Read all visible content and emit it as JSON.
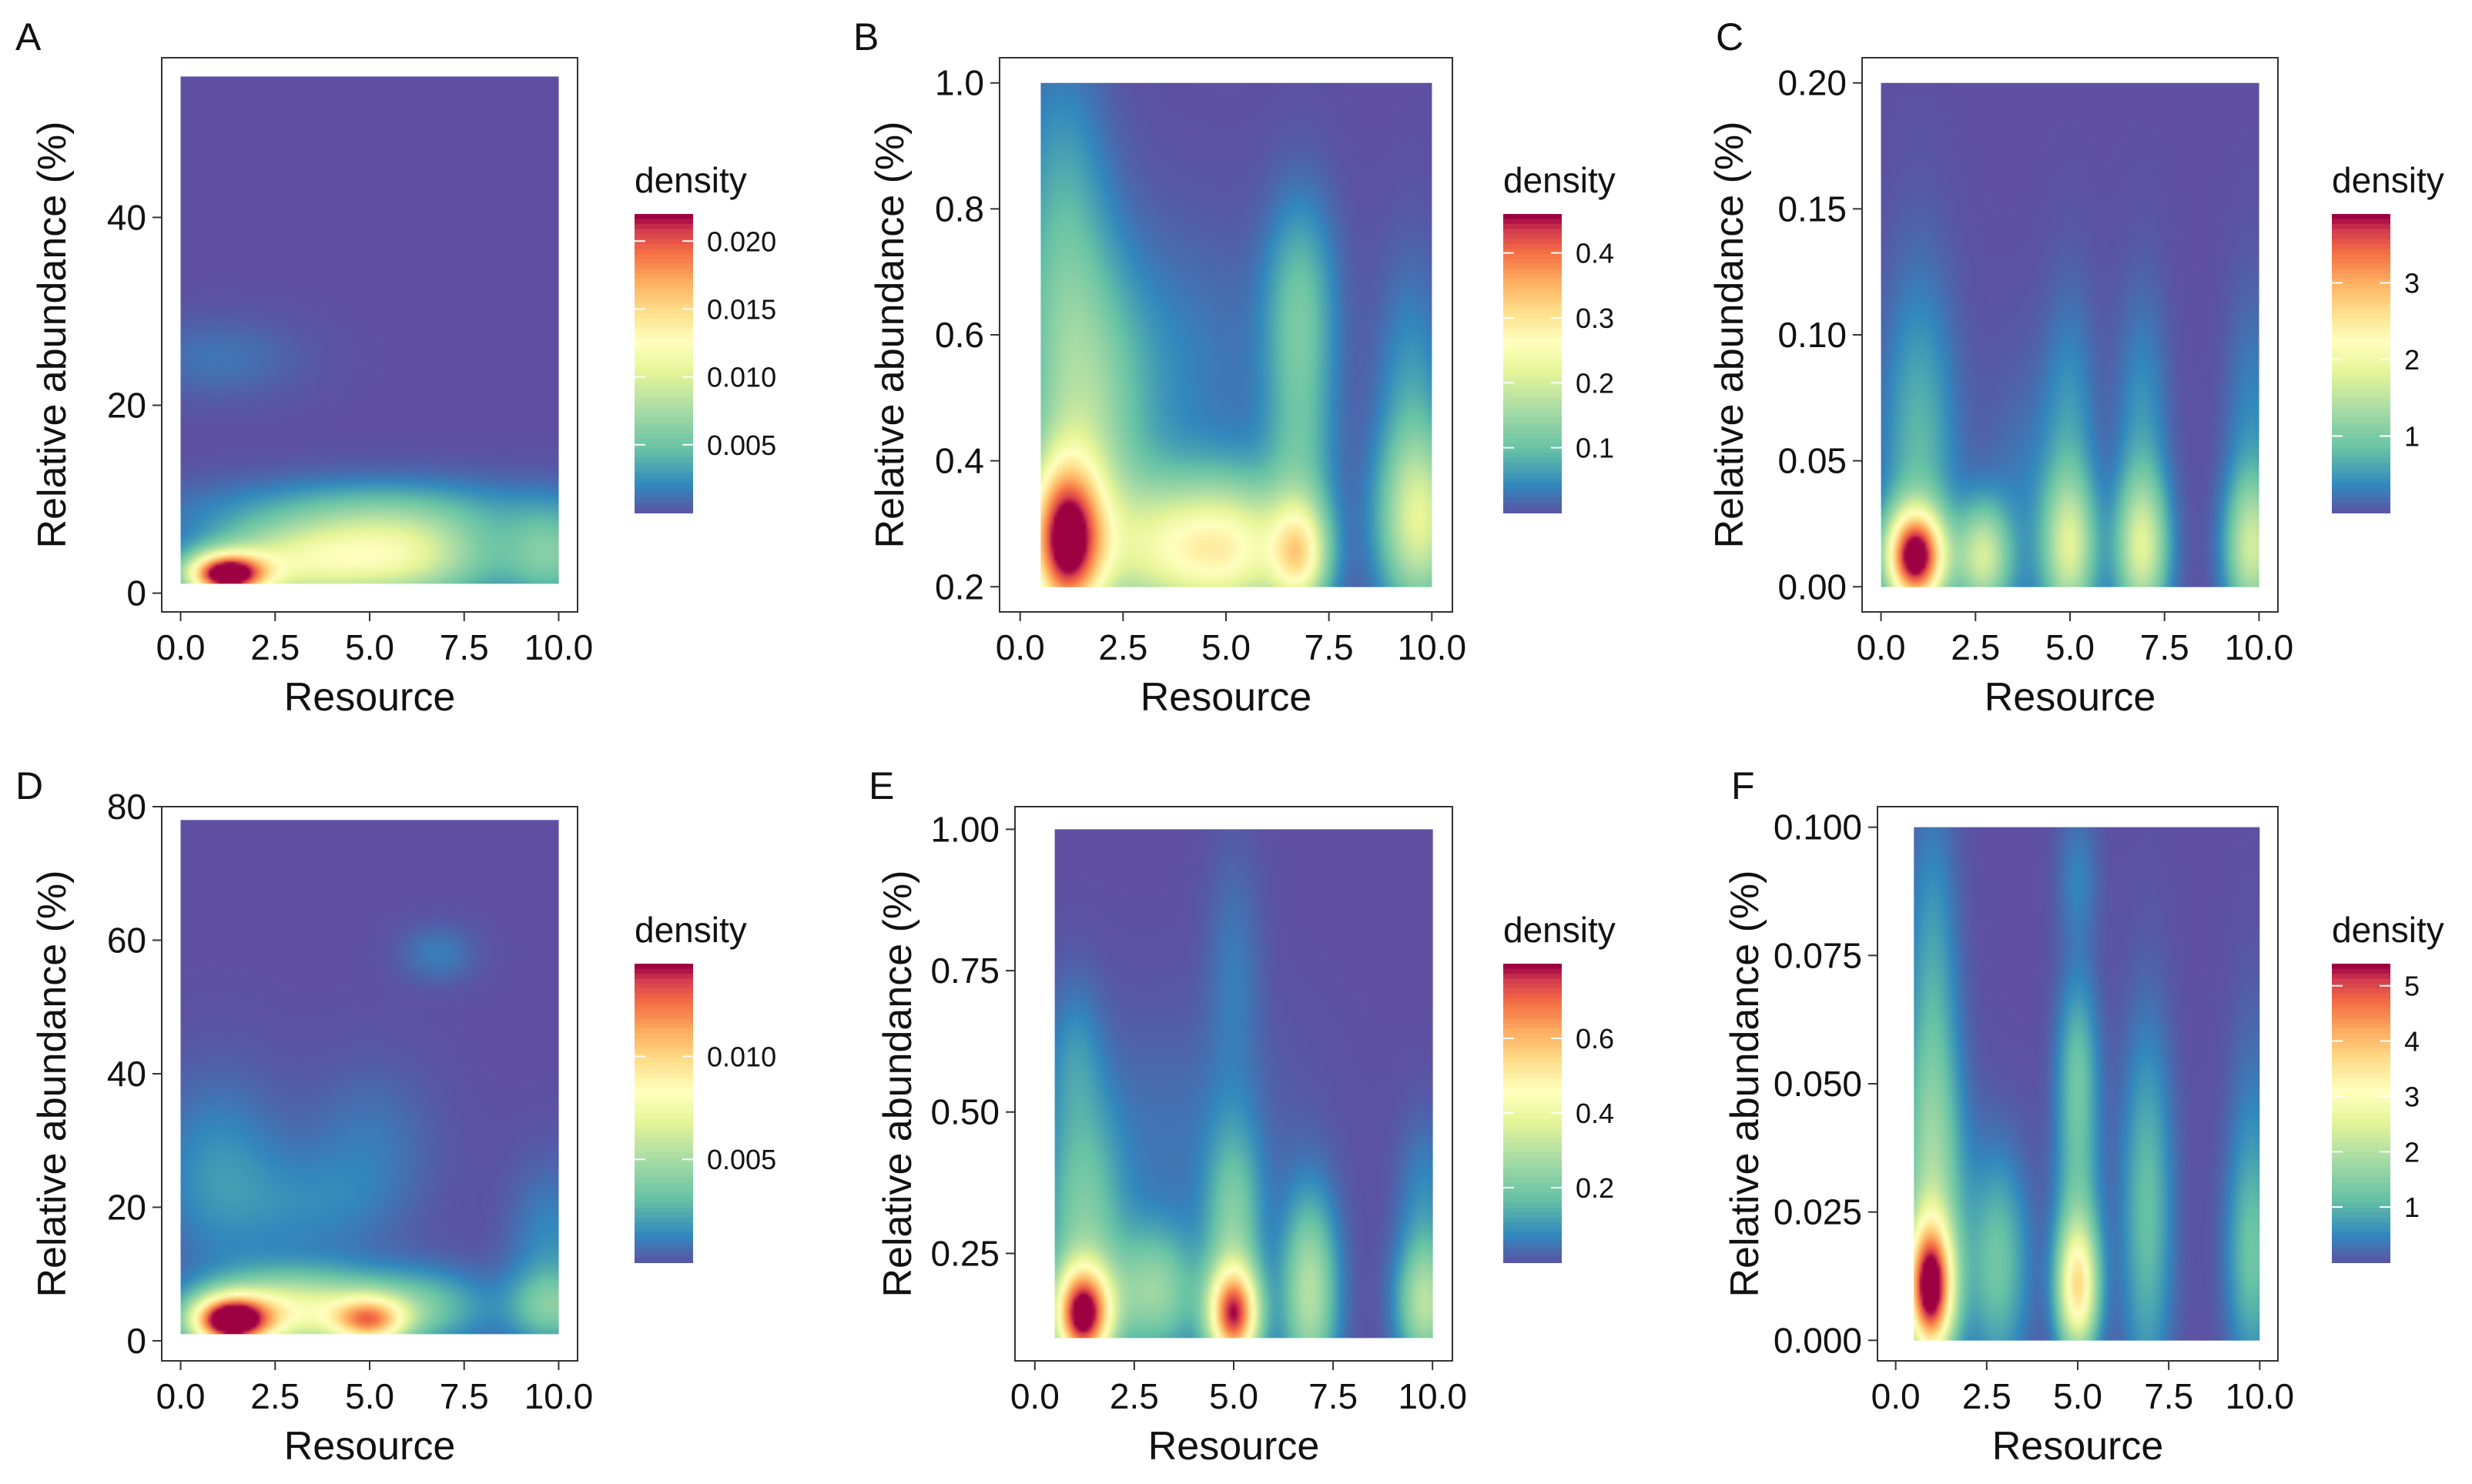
{
  "chart_data": [
    {
      "type": "heatmap",
      "panel": "A",
      "xlabel": "Resource",
      "ylabel": "Relative abundance (%)",
      "xlim": [
        0,
        10
      ],
      "ylim": [
        1,
        55
      ],
      "axis_ylim": [
        -2,
        57
      ],
      "xticks": [
        0,
        2.5,
        5,
        7.5,
        10
      ],
      "xtick_labels": [
        "0.0",
        "2.5",
        "5.0",
        "7.5",
        "10.0"
      ],
      "yticks": [
        0,
        20,
        40
      ],
      "ytick_labels": [
        "0",
        "20",
        "40"
      ],
      "legend_title": "density",
      "legend_max": 0.022,
      "legend_ticks": [
        0.005,
        0.01,
        0.015,
        0.02
      ],
      "legend_labels": [
        "0.005",
        "0.010",
        "0.015",
        "0.020"
      ],
      "density_peaks": [
        {
          "x": 1.2,
          "y": 2,
          "sx": 0.7,
          "sy": 1.5,
          "a": 0.021
        },
        {
          "x": 2.3,
          "y": 3,
          "sx": 1.5,
          "sy": 3,
          "a": 0.007
        },
        {
          "x": 4.5,
          "y": 4,
          "sx": 1.6,
          "sy": 3.5,
          "a": 0.0075
        },
        {
          "x": 6.5,
          "y": 4,
          "sx": 1.5,
          "sy": 3.5,
          "a": 0.0065
        },
        {
          "x": 9.8,
          "y": 4,
          "sx": 0.9,
          "sy": 3.5,
          "a": 0.0055
        },
        {
          "x": 5,
          "y": 9,
          "sx": 4,
          "sy": 2.5,
          "a": 0.0025
        },
        {
          "x": 1,
          "y": 25,
          "sx": 1.5,
          "sy": 3,
          "a": 0.0015
        }
      ]
    },
    {
      "type": "heatmap",
      "panel": "B",
      "xlabel": "Resource",
      "ylabel": "Relative abundance (%)",
      "xlim": [
        0.5,
        10
      ],
      "ylim": [
        0.2,
        1.0
      ],
      "axis_ylim": [
        0.16,
        1.04
      ],
      "xticks": [
        0,
        2.5,
        5,
        7.5,
        10
      ],
      "xtick_labels": [
        "0.0",
        "2.5",
        "5.0",
        "7.5",
        "10.0"
      ],
      "yticks": [
        0.2,
        0.4,
        0.6,
        0.8,
        1.0
      ],
      "ytick_labels": [
        "0.2",
        "0.4",
        "0.6",
        "0.8",
        "1.0"
      ],
      "legend_title": "density",
      "legend_max": 0.46,
      "legend_ticks": [
        0.1,
        0.2,
        0.3,
        0.4
      ],
      "legend_labels": [
        "0.1",
        "0.2",
        "0.3",
        "0.4"
      ],
      "density_peaks": [
        {
          "x": 1.1,
          "y": 0.27,
          "sx": 0.65,
          "sy": 0.09,
          "a": 0.43
        },
        {
          "x": 1.6,
          "y": 0.45,
          "sx": 1.0,
          "sy": 0.18,
          "a": 0.12
        },
        {
          "x": 1.0,
          "y": 0.75,
          "sx": 0.8,
          "sy": 0.2,
          "a": 0.08
        },
        {
          "x": 3.5,
          "y": 0.26,
          "sx": 1.2,
          "sy": 0.08,
          "a": 0.2
        },
        {
          "x": 5.3,
          "y": 0.26,
          "sx": 1.0,
          "sy": 0.08,
          "a": 0.2
        },
        {
          "x": 6.8,
          "y": 0.25,
          "sx": 0.5,
          "sy": 0.06,
          "a": 0.22
        },
        {
          "x": 6.8,
          "y": 0.4,
          "sx": 0.6,
          "sy": 0.12,
          "a": 0.08
        },
        {
          "x": 6.8,
          "y": 0.65,
          "sx": 0.6,
          "sy": 0.12,
          "a": 0.1
        },
        {
          "x": 9.7,
          "y": 0.3,
          "sx": 0.7,
          "sy": 0.1,
          "a": 0.2
        },
        {
          "x": 9.5,
          "y": 0.5,
          "sx": 0.6,
          "sy": 0.15,
          "a": 0.06
        },
        {
          "x": 3.5,
          "y": 0.55,
          "sx": 2.0,
          "sy": 0.15,
          "a": 0.04
        }
      ]
    },
    {
      "type": "heatmap",
      "panel": "C",
      "xlabel": "Resource",
      "ylabel": "Relative abundance (%)",
      "xlim": [
        0,
        10
      ],
      "ylim": [
        0,
        0.2
      ],
      "axis_ylim": [
        -0.01,
        0.21
      ],
      "xticks": [
        0,
        2.5,
        5,
        7.5,
        10
      ],
      "xtick_labels": [
        "0.0",
        "2.5",
        "5.0",
        "7.5",
        "10.0"
      ],
      "yticks": [
        0,
        0.05,
        0.1,
        0.15,
        0.2
      ],
      "ytick_labels": [
        "0.00",
        "0.05",
        "0.10",
        "0.15",
        "0.20"
      ],
      "legend_title": "density",
      "legend_max": 3.9,
      "legend_ticks": [
        1,
        2,
        3
      ],
      "legend_labels": [
        "1",
        "2",
        "3"
      ],
      "density_peaks": [
        {
          "x": 0.9,
          "y": 0.012,
          "sx": 0.55,
          "sy": 0.013,
          "a": 3.8
        },
        {
          "x": 1.0,
          "y": 0.05,
          "sx": 0.7,
          "sy": 0.05,
          "a": 0.8
        },
        {
          "x": 2.7,
          "y": 0.012,
          "sx": 0.5,
          "sy": 0.015,
          "a": 1.6
        },
        {
          "x": 5.0,
          "y": 0.015,
          "sx": 0.5,
          "sy": 0.02,
          "a": 1.5
        },
        {
          "x": 5.0,
          "y": 0.06,
          "sx": 0.5,
          "sy": 0.04,
          "a": 0.5
        },
        {
          "x": 6.9,
          "y": 0.015,
          "sx": 0.5,
          "sy": 0.02,
          "a": 1.6
        },
        {
          "x": 6.9,
          "y": 0.06,
          "sx": 0.5,
          "sy": 0.04,
          "a": 0.5
        },
        {
          "x": 9.8,
          "y": 0.015,
          "sx": 0.5,
          "sy": 0.02,
          "a": 1.5
        },
        {
          "x": 9.8,
          "y": 0.06,
          "sx": 0.5,
          "sy": 0.04,
          "a": 0.4
        },
        {
          "x": 3.8,
          "y": 0.03,
          "sx": 0.8,
          "sy": 0.04,
          "a": 0.3
        }
      ]
    },
    {
      "type": "heatmap",
      "panel": "D",
      "xlabel": "Resource",
      "ylabel": "Relative abundance (%)",
      "xlim": [
        0,
        10
      ],
      "ylim": [
        1,
        78
      ],
      "axis_ylim": [
        -3,
        80
      ],
      "xticks": [
        0,
        2.5,
        5,
        7.5,
        10
      ],
      "xtick_labels": [
        "0.0",
        "2.5",
        "5.0",
        "7.5",
        "10.0"
      ],
      "yticks": [
        0,
        20,
        40,
        60,
        80
      ],
      "ytick_labels": [
        "0",
        "20",
        "40",
        "60",
        "80"
      ],
      "legend_title": "density",
      "legend_max": 0.0145,
      "legend_ticks": [
        0.005,
        0.01
      ],
      "legend_labels": [
        "0.005",
        "0.010"
      ],
      "density_peaks": [
        {
          "x": 1.3,
          "y": 3,
          "sx": 0.7,
          "sy": 2.5,
          "a": 0.0138
        },
        {
          "x": 2.2,
          "y": 4,
          "sx": 1.4,
          "sy": 4,
          "a": 0.005
        },
        {
          "x": 5.0,
          "y": 3,
          "sx": 0.7,
          "sy": 2.5,
          "a": 0.0085
        },
        {
          "x": 3.8,
          "y": 5,
          "sx": 1.5,
          "sy": 4,
          "a": 0.004
        },
        {
          "x": 6.5,
          "y": 5,
          "sx": 1.2,
          "sy": 4,
          "a": 0.003
        },
        {
          "x": 9.8,
          "y": 5,
          "sx": 0.8,
          "sy": 4,
          "a": 0.0035
        },
        {
          "x": 1.0,
          "y": 25,
          "sx": 1.2,
          "sy": 10,
          "a": 0.0018
        },
        {
          "x": 3.5,
          "y": 20,
          "sx": 1.5,
          "sy": 6,
          "a": 0.0012
        },
        {
          "x": 5.0,
          "y": 30,
          "sx": 1.2,
          "sy": 8,
          "a": 0.001
        },
        {
          "x": 6.8,
          "y": 58,
          "sx": 0.7,
          "sy": 3,
          "a": 0.0012
        },
        {
          "x": 9.8,
          "y": 15,
          "sx": 0.8,
          "sy": 8,
          "a": 0.0015
        }
      ]
    },
    {
      "type": "heatmap",
      "panel": "E",
      "xlabel": "Resource",
      "ylabel": "Relative abundance (%)",
      "xlim": [
        0.5,
        10
      ],
      "ylim": [
        0.1,
        1.0
      ],
      "axis_ylim": [
        0.06,
        1.04
      ],
      "xticks": [
        0,
        2.5,
        5,
        7.5,
        10
      ],
      "xtick_labels": [
        "0.0",
        "2.5",
        "5.0",
        "7.5",
        "10.0"
      ],
      "yticks": [
        0.25,
        0.5,
        0.75,
        1.0
      ],
      "ytick_labels": [
        "0.25",
        "0.50",
        "0.75",
        "1.00"
      ],
      "legend_title": "density",
      "legend_max": 0.8,
      "legend_ticks": [
        0.2,
        0.4,
        0.6
      ],
      "legend_labels": [
        "0.2",
        "0.4",
        "0.6"
      ],
      "density_peaks": [
        {
          "x": 1.2,
          "y": 0.14,
          "sx": 0.5,
          "sy": 0.06,
          "a": 0.76
        },
        {
          "x": 1.2,
          "y": 0.3,
          "sx": 0.7,
          "sy": 0.15,
          "a": 0.2
        },
        {
          "x": 1.0,
          "y": 0.6,
          "sx": 0.5,
          "sy": 0.1,
          "a": 0.08
        },
        {
          "x": 5.0,
          "y": 0.14,
          "sx": 0.45,
          "sy": 0.06,
          "a": 0.7
        },
        {
          "x": 5.0,
          "y": 0.3,
          "sx": 0.5,
          "sy": 0.12,
          "a": 0.2
        },
        {
          "x": 5.0,
          "y": 0.75,
          "sx": 0.5,
          "sy": 0.15,
          "a": 0.06
        },
        {
          "x": 3.0,
          "y": 0.18,
          "sx": 0.8,
          "sy": 0.08,
          "a": 0.25
        },
        {
          "x": 6.9,
          "y": 0.18,
          "sx": 0.5,
          "sy": 0.12,
          "a": 0.3
        },
        {
          "x": 9.8,
          "y": 0.16,
          "sx": 0.5,
          "sy": 0.08,
          "a": 0.3
        },
        {
          "x": 9.8,
          "y": 0.35,
          "sx": 0.5,
          "sy": 0.1,
          "a": 0.08
        },
        {
          "x": 3.5,
          "y": 0.45,
          "sx": 2.0,
          "sy": 0.15,
          "a": 0.05
        }
      ]
    },
    {
      "type": "heatmap",
      "panel": "F",
      "xlabel": "Resource",
      "ylabel": "Relative abundance (%)",
      "xlim": [
        0.5,
        10
      ],
      "ylim": [
        0,
        0.1
      ],
      "axis_ylim": [
        -0.004,
        0.104
      ],
      "xticks": [
        0,
        2.5,
        5,
        7.5,
        10
      ],
      "xtick_labels": [
        "0.0",
        "2.5",
        "5.0",
        "7.5",
        "10.0"
      ],
      "yticks": [
        0,
        0.025,
        0.05,
        0.075,
        0.1
      ],
      "ytick_labels": [
        "0.000",
        "0.025",
        "0.050",
        "0.075",
        "0.100"
      ],
      "legend_title": "density",
      "legend_max": 5.4,
      "legend_ticks": [
        1,
        2,
        3,
        4,
        5
      ],
      "legend_labels": [
        "1",
        "2",
        "3",
        "4",
        "5"
      ],
      "density_peaks": [
        {
          "x": 0.95,
          "y": 0.01,
          "sx": 0.45,
          "sy": 0.009,
          "a": 5.2
        },
        {
          "x": 1.0,
          "y": 0.03,
          "sx": 0.6,
          "sy": 0.02,
          "a": 1.6
        },
        {
          "x": 1.0,
          "y": 0.07,
          "sx": 0.5,
          "sy": 0.025,
          "a": 0.8
        },
        {
          "x": 5.0,
          "y": 0.01,
          "sx": 0.4,
          "sy": 0.009,
          "a": 3.3
        },
        {
          "x": 5.0,
          "y": 0.03,
          "sx": 0.45,
          "sy": 0.015,
          "a": 1.0
        },
        {
          "x": 5.0,
          "y": 0.055,
          "sx": 0.4,
          "sy": 0.012,
          "a": 1.0
        },
        {
          "x": 5.0,
          "y": 0.09,
          "sx": 0.4,
          "sy": 0.01,
          "a": 0.5
        },
        {
          "x": 2.8,
          "y": 0.015,
          "sx": 0.6,
          "sy": 0.015,
          "a": 1.3
        },
        {
          "x": 6.9,
          "y": 0.025,
          "sx": 0.5,
          "sy": 0.025,
          "a": 1.2
        },
        {
          "x": 9.8,
          "y": 0.015,
          "sx": 0.5,
          "sy": 0.015,
          "a": 1.1
        },
        {
          "x": 9.8,
          "y": 0.04,
          "sx": 0.5,
          "sy": 0.02,
          "a": 0.4
        }
      ]
    }
  ]
}
